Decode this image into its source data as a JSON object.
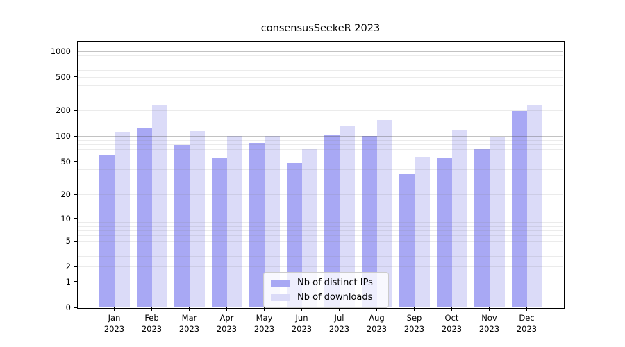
{
  "chart_data": {
    "type": "bar",
    "title": "consensusSeekeR 2023",
    "year_label": "2023",
    "categories": [
      "Jan",
      "Feb",
      "Mar",
      "Apr",
      "May",
      "Jun",
      "Jul",
      "Aug",
      "Sep",
      "Oct",
      "Nov",
      "Dec"
    ],
    "series": [
      {
        "name": "Nb of distinct IPs",
        "color": "#a8a8f4",
        "values": [
          60,
          125,
          78,
          55,
          83,
          48,
          102,
          100,
          36,
          55,
          70,
          199
        ]
      },
      {
        "name": "Nb of downloads",
        "color": "#dbdbf8",
        "values": [
          112,
          233,
          115,
          100,
          100,
          70,
          134,
          154,
          57,
          119,
          97,
          229
        ]
      }
    ],
    "xlabel": "",
    "ylabel": "",
    "y_scale": "log10(value+1)",
    "y_ticks": [
      0,
      1,
      2,
      5,
      10,
      20,
      50,
      100,
      200,
      500,
      1000
    ],
    "y_minor_gridlines": [
      2,
      3,
      4,
      5,
      6,
      7,
      8,
      9,
      20,
      30,
      40,
      50,
      60,
      70,
      80,
      90,
      200,
      300,
      400,
      500,
      600,
      700,
      800,
      900
    ],
    "y_major_gridlines": [
      1,
      10,
      100,
      1000
    ],
    "y_max": 1290,
    "grid": "on",
    "legend_position": "bottom-center-inside",
    "background_color": "#ffffff",
    "spine_color": "#000000"
  }
}
